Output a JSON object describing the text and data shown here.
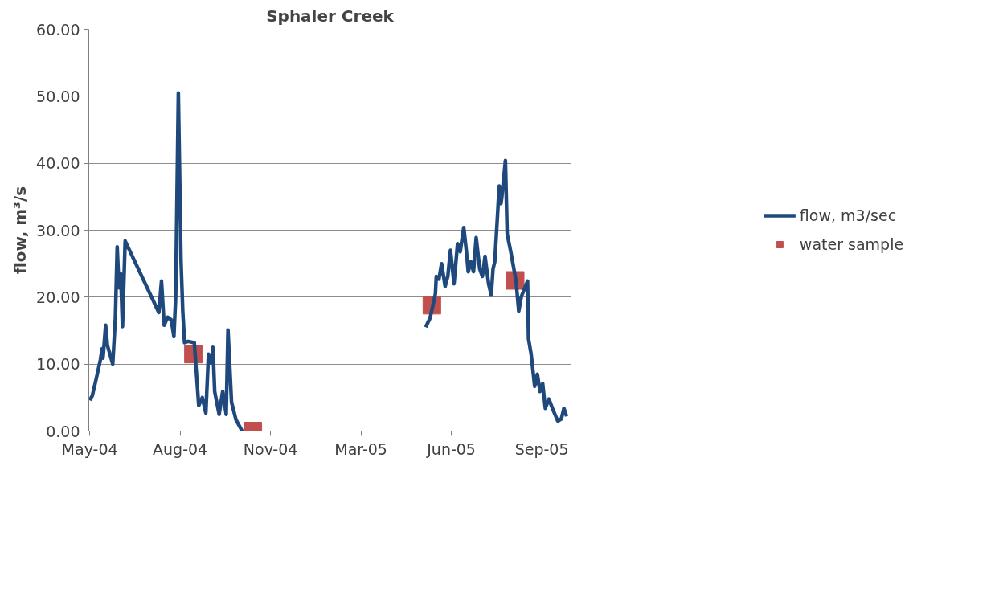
{
  "chart_data": {
    "type": "line",
    "title": "Sphaler Creek",
    "ylabel": "flow, m³/s",
    "ylim": [
      0,
      60
    ],
    "yticks": [
      {
        "value": 0,
        "label": "0.00"
      },
      {
        "value": 10,
        "label": "10.00"
      },
      {
        "value": 20,
        "label": "20.00"
      },
      {
        "value": 30,
        "label": "30.00"
      },
      {
        "value": 40,
        "label": "40.00"
      },
      {
        "value": 50,
        "label": "50.00"
      },
      {
        "value": 60,
        "label": "60.00"
      }
    ],
    "xlim": [
      "2004-04-30",
      "2005-10-26"
    ],
    "xticks": [
      {
        "value": "2004-05-01",
        "label": "May-04"
      },
      {
        "value": "2004-08-11",
        "label": "Aug-04"
      },
      {
        "value": "2004-11-21",
        "label": "Nov-04"
      },
      {
        "value": "2005-03-03",
        "label": "Mar-05"
      },
      {
        "value": "2005-06-13",
        "label": "Jun-05"
      },
      {
        "value": "2005-09-23",
        "label": "Sep-05"
      }
    ],
    "grid": "y",
    "legend": "right",
    "series": [
      {
        "name": "flow, m3/sec",
        "color": "#1f497d",
        "marker": "none",
        "line_style": "solid",
        "x": [
          "2004-05-01",
          "2004-05-04",
          "2004-05-08",
          "2004-05-13",
          "2004-05-15",
          "2004-05-16",
          "2004-05-19",
          "2004-05-21",
          "2004-05-27",
          "2004-05-30",
          "2004-06-01",
          "2004-06-03",
          "2004-06-05",
          "2004-06-07",
          "2004-06-10",
          "2004-07-18",
          "2004-07-21",
          "2004-07-24",
          "2004-07-28",
          "2004-08-01",
          "2004-08-04",
          "2004-08-06",
          "2004-08-09",
          "2004-08-12",
          "2004-08-14",
          "2004-08-16",
          "2004-08-20",
          "2004-08-27",
          "2004-08-29",
          "2004-09-01",
          "2004-09-05",
          "2004-09-09",
          "2004-09-12",
          "2004-09-15",
          "2004-09-17",
          "2004-09-19",
          "2004-09-24",
          "2004-09-28",
          "2004-10-02",
          "2004-10-04",
          "2004-10-08",
          "2004-10-13",
          "2004-10-20",
          "2005-01-15",
          "2005-05-15",
          "2005-05-20",
          "2005-05-26",
          "2005-05-27",
          "2005-05-30",
          "2005-06-02",
          "2005-06-06",
          "2005-06-09",
          "2005-06-12",
          "2005-06-16",
          "2005-06-20",
          "2005-06-23",
          "2005-06-27",
          "2005-06-30",
          "2005-07-02",
          "2005-07-05",
          "2005-07-08",
          "2005-07-11",
          "2005-07-15",
          "2005-07-18",
          "2005-07-21",
          "2005-07-25",
          "2005-07-28",
          "2005-07-30",
          "2005-08-01",
          "2005-08-06",
          "2005-08-08",
          "2005-08-09",
          "2005-08-13",
          "2005-08-15",
          "2005-08-19",
          "2005-08-22",
          "2005-08-25",
          "2005-08-28",
          "2005-08-31",
          "2005-09-07",
          "2005-09-08",
          "2005-09-11",
          "2005-09-15",
          "2005-09-18",
          "2005-09-21",
          "2005-09-24",
          "2005-09-27",
          "2005-10-01",
          "2005-10-05",
          "2005-10-11",
          "2005-10-15",
          "2005-10-18",
          "2005-10-21"
        ],
        "values": [
          4.6,
          5.3,
          7.6,
          10.6,
          12.3,
          10.9,
          15.8,
          12.8,
          10.0,
          17.0,
          27.5,
          21.4,
          23.5,
          15.6,
          28.4,
          17.7,
          22.4,
          15.8,
          17.0,
          16.6,
          14.1,
          20.0,
          50.5,
          25.6,
          17.9,
          13.2,
          13.4,
          13.2,
          9.4,
          3.8,
          5.0,
          2.7,
          11.5,
          10.2,
          12.5,
          5.9,
          2.5,
          5.9,
          2.5,
          15.1,
          4.3,
          1.7,
          0.0,
          null,
          15.5,
          16.9,
          20.5,
          23.1,
          22.7,
          25.0,
          21.6,
          23.1,
          27.0,
          22.0,
          28.0,
          26.8,
          30.4,
          26.8,
          23.8,
          25.3,
          23.8,
          28.9,
          24.2,
          23.1,
          26.1,
          22.0,
          20.3,
          24.2,
          25.3,
          36.6,
          34.0,
          35.0,
          40.4,
          29.4,
          26.8,
          24.6,
          22.4,
          17.9,
          20.1,
          22.4,
          13.8,
          11.5,
          6.7,
          8.5,
          5.9,
          7.1,
          3.4,
          4.8,
          3.4,
          1.5,
          1.8,
          3.4,
          2.2
        ]
      },
      {
        "name": "water sample",
        "type": "scatter",
        "color": "#c0504d",
        "marker": "square",
        "x": [
          "2004-08-26",
          "2004-11-01",
          "2005-05-22",
          "2005-08-24"
        ],
        "values": [
          11.5,
          0.0,
          18.8,
          22.5
        ]
      }
    ]
  }
}
